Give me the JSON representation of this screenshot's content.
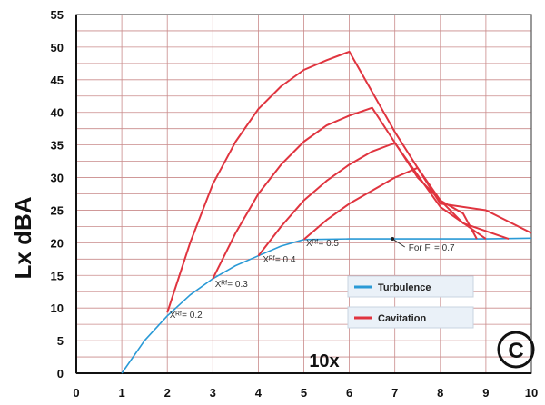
{
  "chart_data": {
    "type": "line",
    "title": "",
    "xlabel": "10x",
    "ylabel": "Lx dBA",
    "xlim": [
      0,
      10
    ],
    "ylim": [
      0,
      55
    ],
    "x_ticks": [
      "0",
      "1",
      "2",
      "3",
      "4",
      "5",
      "6",
      "7",
      "8",
      "9",
      "10"
    ],
    "y_ticks": [
      "0",
      "5",
      "10",
      "15",
      "20",
      "25",
      "30",
      "35",
      "40",
      "45",
      "50",
      "55"
    ],
    "grid": true,
    "legend_position": "bottom-right",
    "badge": "C",
    "series": [
      {
        "name": "Turbulence",
        "color": "#2a9ad6",
        "points": [
          [
            1.0,
            0.0
          ],
          [
            1.5,
            5.0
          ],
          [
            2.0,
            8.8
          ],
          [
            2.5,
            12.0
          ],
          [
            3.0,
            14.5
          ],
          [
            3.5,
            16.5
          ],
          [
            4.0,
            18.0
          ],
          [
            4.5,
            19.5
          ],
          [
            5.0,
            20.5
          ],
          [
            6.0,
            20.6
          ],
          [
            7.0,
            20.6
          ],
          [
            8.0,
            20.6
          ],
          [
            9.0,
            20.6
          ],
          [
            10.0,
            20.7
          ]
        ]
      },
      {
        "name": "Cavitation",
        "color": "#e0343f",
        "points": [
          [
            2.0,
            9.3
          ],
          [
            2.5,
            20.0
          ],
          [
            3.0,
            29.0
          ],
          [
            3.5,
            35.5
          ],
          [
            4.0,
            40.5
          ],
          [
            4.5,
            44.0
          ],
          [
            5.0,
            46.5
          ],
          [
            5.5,
            48.0
          ],
          [
            6.0,
            49.3
          ],
          [
            7.0,
            37.0
          ],
          [
            8.0,
            26.0
          ],
          [
            9.0,
            25.0
          ],
          [
            10.0,
            21.5
          ]
        ]
      },
      {
        "name": "",
        "color": "#e0343f",
        "points": [
          [
            3.0,
            14.5
          ],
          [
            3.5,
            21.5
          ],
          [
            4.0,
            27.5
          ],
          [
            4.5,
            32.0
          ],
          [
            5.0,
            35.5
          ],
          [
            5.5,
            38.0
          ],
          [
            6.0,
            39.5
          ],
          [
            6.5,
            40.7
          ],
          [
            7.5,
            30.0
          ],
          [
            8.5,
            23.0
          ],
          [
            9.5,
            20.6
          ]
        ]
      },
      {
        "name": "",
        "color": "#e0343f",
        "points": [
          [
            4.0,
            18.0
          ],
          [
            4.5,
            22.5
          ],
          [
            5.0,
            26.5
          ],
          [
            5.5,
            29.5
          ],
          [
            6.0,
            32.0
          ],
          [
            6.5,
            34.0
          ],
          [
            7.0,
            35.3
          ],
          [
            8.0,
            25.5
          ],
          [
            9.0,
            20.6
          ]
        ]
      },
      {
        "name": "",
        "color": "#e0343f",
        "points": [
          [
            5.0,
            20.5
          ],
          [
            5.5,
            23.5
          ],
          [
            6.0,
            26.0
          ],
          [
            6.5,
            28.0
          ],
          [
            7.0,
            30.0
          ],
          [
            7.5,
            31.5
          ],
          [
            8.0,
            26.5
          ],
          [
            8.5,
            24.5
          ],
          [
            8.8,
            20.6
          ]
        ]
      }
    ],
    "annotations": [
      {
        "text": "Xᴿᶠ= 0.2",
        "x": 2.05,
        "y": 8.5
      },
      {
        "text": "Xᴿᶠ= 0.3",
        "x": 3.05,
        "y": 13.2
      },
      {
        "text": "Xᴿᶠ= 0.4",
        "x": 4.1,
        "y": 17.0
      },
      {
        "text": "Xᴿᶠ= 0.5",
        "x": 5.05,
        "y": 19.5
      },
      {
        "text": "For Fₗ = 0.7",
        "x": 7.3,
        "y": 18.8
      }
    ]
  }
}
